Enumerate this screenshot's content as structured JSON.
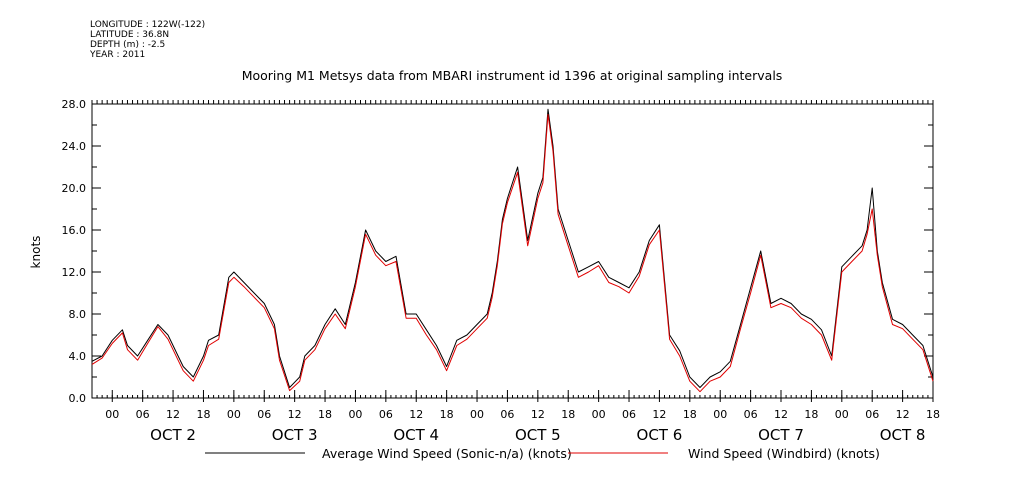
{
  "meta": {
    "longitude": "LONGITUDE : 122W(-122)",
    "latitude": "LATITUDE : 36.8N",
    "depth": "DEPTH (m) : -2.5",
    "year": "YEAR : 2011"
  },
  "colors": {
    "series1": "#000000",
    "series2": "#e00000"
  },
  "chart_data": {
    "type": "line",
    "title": "Mooring M1 Metsys data from MBARI instrument id 1396 at original sampling intervals",
    "ylabel": "knots",
    "xlabel": "",
    "ylim": [
      0,
      28
    ],
    "xlim_hours": [
      -4,
      162
    ],
    "yticks": [
      "0.0",
      "4.0",
      "8.0",
      "12.0",
      "16.0",
      "20.0",
      "24.0",
      "28.0"
    ],
    "hour_ticks": [
      "00",
      "06",
      "12",
      "18",
      "00",
      "06",
      "12",
      "18",
      "00",
      "06",
      "12",
      "18",
      "00",
      "06",
      "12",
      "18",
      "00",
      "06",
      "12",
      "18",
      "00",
      "06",
      "12",
      "18",
      "00",
      "06",
      "12",
      "18"
    ],
    "day_labels": [
      "OCT  2",
      "OCT  3",
      "OCT  4",
      "OCT  5",
      "OCT  6",
      "OCT  7",
      "OCT  8"
    ],
    "x_unit": "hours since OCT 2 00",
    "series": [
      {
        "name": "Average Wind Speed (Sonic-n/a) (knots)",
        "x": [
          -4,
          -2,
          0,
          2,
          3,
          5,
          7,
          9,
          11,
          13,
          14,
          16,
          18,
          19,
          21,
          23,
          24,
          26,
          28,
          30,
          32,
          33,
          35,
          37,
          38,
          40,
          42,
          44,
          46,
          48,
          50,
          52,
          54,
          56,
          58,
          60,
          62,
          64,
          66,
          68,
          70,
          72,
          74,
          75,
          76,
          77,
          78,
          80,
          82,
          84,
          85,
          86,
          87,
          88,
          90,
          92,
          94,
          96,
          98,
          100,
          102,
          104,
          106,
          108,
          110,
          112,
          114,
          116,
          118,
          120,
          122,
          124,
          126,
          128,
          130,
          132,
          134,
          136,
          138,
          140,
          142,
          144,
          146,
          148,
          149,
          150,
          151,
          152,
          154,
          156,
          158,
          160,
          162
        ],
        "y": [
          3.5,
          4.0,
          5.5,
          6.5,
          5.0,
          4.0,
          5.5,
          7.0,
          6.0,
          4.0,
          3.0,
          2.0,
          4.0,
          5.5,
          6.0,
          11.5,
          12.0,
          11.0,
          10.0,
          9.0,
          7.0,
          4.0,
          1.0,
          2.0,
          4.0,
          5.0,
          7.0,
          8.5,
          7.0,
          11.0,
          16.0,
          14.0,
          13.0,
          13.5,
          8.0,
          8.0,
          6.5,
          5.0,
          3.0,
          5.5,
          6.0,
          7.0,
          8.0,
          10.0,
          13.0,
          17.0,
          19.0,
          22.0,
          15.0,
          19.5,
          21.0,
          27.5,
          24.0,
          18.0,
          15.0,
          12.0,
          12.5,
          13.0,
          11.5,
          11.0,
          10.5,
          12.0,
          15.0,
          16.5,
          6.0,
          4.5,
          2.0,
          1.0,
          2.0,
          2.5,
          3.5,
          7.0,
          10.5,
          14.0,
          9.0,
          9.5,
          9.0,
          8.0,
          7.5,
          6.5,
          4.0,
          12.5,
          13.5,
          14.5,
          16.0,
          20.0,
          14.0,
          11.0,
          7.5,
          7.0,
          6.0,
          5.0,
          2.0
        ]
      },
      {
        "name": "Wind Speed (Windbird) (knots)",
        "x": [
          -4,
          -2,
          0,
          2,
          3,
          5,
          7,
          9,
          11,
          13,
          14,
          16,
          18,
          19,
          21,
          23,
          24,
          26,
          28,
          30,
          32,
          33,
          35,
          37,
          38,
          40,
          42,
          44,
          46,
          48,
          50,
          52,
          54,
          56,
          58,
          60,
          62,
          64,
          66,
          68,
          70,
          72,
          74,
          75,
          76,
          77,
          78,
          80,
          82,
          84,
          85,
          86,
          87,
          88,
          90,
          92,
          94,
          96,
          98,
          100,
          102,
          104,
          106,
          108,
          110,
          112,
          114,
          116,
          118,
          120,
          122,
          124,
          126,
          128,
          130,
          132,
          134,
          136,
          138,
          140,
          142,
          144,
          146,
          148,
          149,
          150,
          151,
          152,
          154,
          156,
          158,
          160,
          162
        ],
        "y": [
          3.2,
          3.8,
          5.2,
          6.2,
          4.6,
          3.6,
          5.2,
          6.8,
          5.6,
          3.6,
          2.6,
          1.6,
          3.6,
          5.0,
          5.6,
          11.0,
          11.5,
          10.6,
          9.6,
          8.6,
          6.6,
          3.6,
          0.7,
          1.6,
          3.6,
          4.6,
          6.6,
          8.0,
          6.6,
          10.6,
          15.6,
          13.6,
          12.6,
          13.0,
          7.6,
          7.6,
          6.0,
          4.6,
          2.6,
          5.0,
          5.6,
          6.6,
          7.6,
          9.6,
          12.6,
          16.6,
          18.6,
          21.5,
          14.5,
          19.0,
          20.5,
          27.0,
          23.5,
          17.5,
          14.5,
          11.5,
          12.0,
          12.6,
          11.0,
          10.6,
          10.0,
          11.6,
          14.6,
          16.0,
          5.6,
          4.0,
          1.6,
          0.6,
          1.6,
          2.0,
          3.0,
          6.6,
          10.0,
          13.6,
          8.6,
          9.0,
          8.6,
          7.6,
          7.0,
          6.0,
          3.6,
          12.0,
          13.0,
          14.0,
          15.6,
          18.0,
          13.6,
          10.6,
          7.0,
          6.6,
          5.6,
          4.6,
          1.6
        ]
      }
    ]
  }
}
